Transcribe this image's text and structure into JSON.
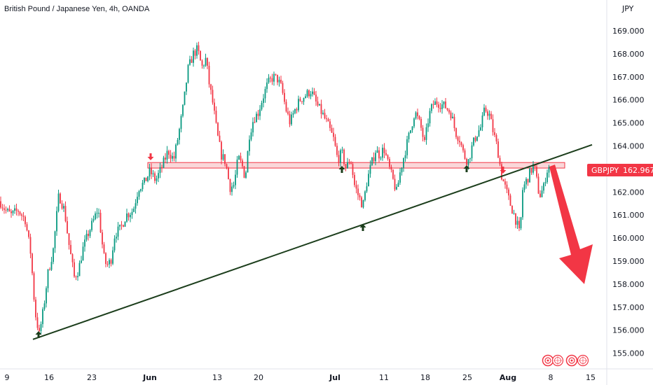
{
  "chart_data": {
    "type": "candlestick",
    "title": "British Pound / Japanese Yen, 4h, OANDA",
    "unit": "JPY",
    "symbol": "GBPJPY",
    "last_price": "162.967",
    "ylim": [
      154.6,
      169.6
    ],
    "y_ticks": [
      "155.000",
      "156.000",
      "157.000",
      "158.000",
      "159.000",
      "160.000",
      "161.000",
      "162.000",
      "163.000",
      "164.000",
      "165.000",
      "166.000",
      "167.000",
      "168.000",
      "169.000"
    ],
    "x_ticks": [
      "9",
      "16",
      "23",
      "Jun",
      "13",
      "20",
      "Jul",
      "11",
      "18",
      "25",
      "Aug",
      "8",
      "15"
    ],
    "path_points": [
      [
        0,
        161.6
      ],
      [
        8,
        161.2
      ],
      [
        16,
        161.0
      ],
      [
        26,
        161.2
      ],
      [
        36,
        160.8
      ],
      [
        44,
        159.3
      ],
      [
        50,
        156.8
      ],
      [
        56,
        155.8
      ],
      [
        62,
        156.9
      ],
      [
        68,
        158.4
      ],
      [
        76,
        159.5
      ],
      [
        84,
        161.9
      ],
      [
        92,
        161.2
      ],
      [
        98,
        159.8
      ],
      [
        106,
        158.3
      ],
      [
        112,
        158.6
      ],
      [
        118,
        159.5
      ],
      [
        126,
        160.2
      ],
      [
        134,
        160.8
      ],
      [
        140,
        161.3
      ],
      [
        148,
        159.2
      ],
      [
        152,
        158.8
      ],
      [
        158,
        159.0
      ],
      [
        164,
        160.2
      ],
      [
        172,
        160.4
      ],
      [
        180,
        161.0
      ],
      [
        190,
        161.2
      ],
      [
        198,
        162.2
      ],
      [
        206,
        162.4
      ],
      [
        214,
        162.9
      ],
      [
        222,
        162.5
      ],
      [
        230,
        163.0
      ],
      [
        240,
        163.8
      ],
      [
        248,
        163.4
      ],
      [
        256,
        164.7
      ],
      [
        262,
        165.8
      ],
      [
        268,
        167.3
      ],
      [
        276,
        168.0
      ],
      [
        282,
        168.2
      ],
      [
        288,
        167.4
      ],
      [
        294,
        167.8
      ],
      [
        298,
        166.8
      ],
      [
        304,
        165.8
      ],
      [
        310,
        164.5
      ],
      [
        316,
        163.6
      ],
      [
        322,
        163.3
      ],
      [
        328,
        162.2
      ],
      [
        334,
        162.3
      ],
      [
        340,
        163.5
      ],
      [
        346,
        163.1
      ],
      [
        350,
        162.6
      ],
      [
        356,
        164.5
      ],
      [
        362,
        165.2
      ],
      [
        368,
        165.4
      ],
      [
        374,
        166.0
      ],
      [
        382,
        166.7
      ],
      [
        390,
        167.0
      ],
      [
        396,
        166.9
      ],
      [
        402,
        166.5
      ],
      [
        408,
        165.6
      ],
      [
        414,
        165.0
      ],
      [
        420,
        165.5
      ],
      [
        428,
        166.0
      ],
      [
        436,
        166.2
      ],
      [
        444,
        166.4
      ],
      [
        452,
        165.8
      ],
      [
        460,
        165.4
      ],
      [
        468,
        164.9
      ],
      [
        476,
        164.3
      ],
      [
        482,
        163.4
      ],
      [
        488,
        163.7
      ],
      [
        494,
        163.0
      ],
      [
        500,
        163.5
      ],
      [
        506,
        162.3
      ],
      [
        512,
        161.8
      ],
      [
        518,
        161.4
      ],
      [
        524,
        162.5
      ],
      [
        530,
        163.2
      ],
      [
        536,
        163.8
      ],
      [
        542,
        163.6
      ],
      [
        548,
        163.9
      ],
      [
        554,
        163.2
      ],
      [
        560,
        162.6
      ],
      [
        566,
        162.0
      ],
      [
        572,
        163.0
      ],
      [
        580,
        164.0
      ],
      [
        586,
        164.7
      ],
      [
        592,
        165.5
      ],
      [
        600,
        164.9
      ],
      [
        606,
        164.1
      ],
      [
        612,
        165.3
      ],
      [
        618,
        165.8
      ],
      [
        624,
        165.9
      ],
      [
        630,
        165.8
      ],
      [
        636,
        165.7
      ],
      [
        644,
        165.4
      ],
      [
        650,
        164.6
      ],
      [
        656,
        164.3
      ],
      [
        662,
        163.6
      ],
      [
        668,
        163.3
      ],
      [
        674,
        164.0
      ],
      [
        680,
        164.5
      ],
      [
        686,
        164.8
      ],
      [
        692,
        165.6
      ],
      [
        698,
        165.4
      ],
      [
        704,
        164.6
      ],
      [
        710,
        163.9
      ],
      [
        716,
        162.7
      ],
      [
        722,
        162.1
      ],
      [
        728,
        161.5
      ],
      [
        734,
        161.0
      ],
      [
        738,
        160.6
      ],
      [
        742,
        160.1
      ],
      [
        746,
        162.1
      ],
      [
        750,
        162.4
      ],
      [
        756,
        162.8
      ],
      [
        762,
        163.2
      ],
      [
        766,
        162.5
      ],
      [
        770,
        161.8
      ],
      [
        776,
        162.2
      ],
      [
        780,
        162.9
      ],
      [
        784,
        163.1
      ]
    ],
    "trendline": {
      "x1_date": "May 14",
      "y1": 155.6,
      "x2_date": "Aug 15",
      "y2": 164.05
    },
    "resistance_zone": {
      "low": 163.04,
      "high": 163.28
    },
    "projection_arrow": {
      "from": 163.1,
      "to": 158.0
    }
  },
  "toolbar": {
    "icons": [
      "target-icon",
      "globe-icon-1",
      "target-icon-2",
      "globe-icon-2"
    ]
  },
  "colors": {
    "up": "#089981",
    "down": "#f23645",
    "trend": "#1b3d1b",
    "zone_fill": "#f8c9cc",
    "zone_stroke": "#f23645",
    "badge": "#f23645"
  }
}
